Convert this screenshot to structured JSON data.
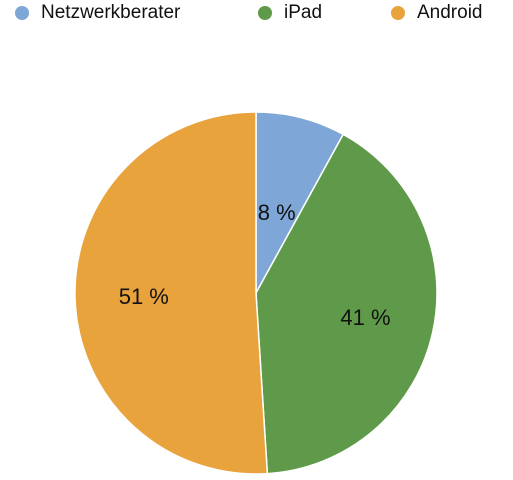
{
  "chart_data": {
    "type": "pie",
    "title": "",
    "legend_position": "top",
    "slices": [
      {
        "name": "Netzwerkberater",
        "value": 8,
        "label": "8 %",
        "color": "#7ea6d6"
      },
      {
        "name": "iPad",
        "value": 41,
        "label": "41 %",
        "color": "#5e9a49"
      },
      {
        "name": "Android",
        "value": 51,
        "label": "51 %",
        "color": "#e8a33d"
      }
    ]
  },
  "legend": {
    "items": [
      {
        "label": "Netzwerkberater",
        "color": "#7ea6d6"
      },
      {
        "label": "iPad",
        "color": "#5e9a49"
      },
      {
        "label": "Android",
        "color": "#e8a33d"
      }
    ]
  }
}
